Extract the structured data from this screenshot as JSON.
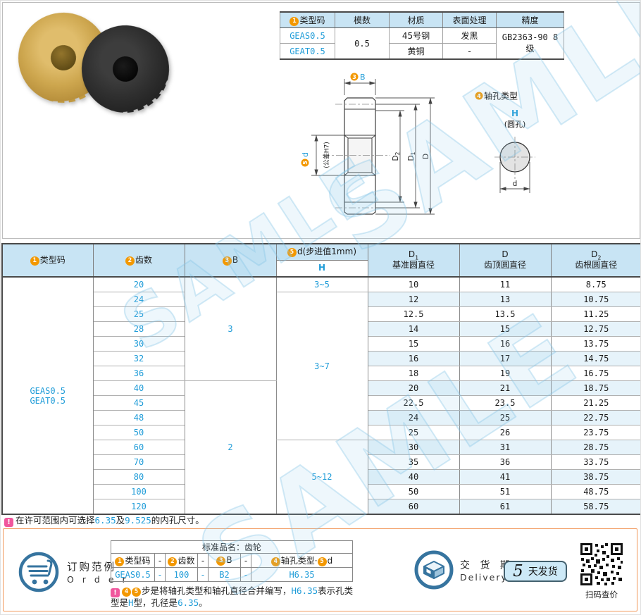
{
  "watermark": {
    "text": "SAMLE"
  },
  "spec_table": {
    "badge": "1",
    "headers": {
      "type": "类型码",
      "module": "模数",
      "material": "材质",
      "surface": "表面处理",
      "precision": "精度"
    },
    "type1": "GEAS0.5",
    "type2": "GEAT0.5",
    "module": "0.5",
    "material1": "45号钢",
    "material2": "黄铜",
    "surface1": "发黑",
    "surface2": "-",
    "precision": "GB2363-90 8级"
  },
  "drawing": {
    "b_badge": "3",
    "b_label": "B",
    "d_badge": "5",
    "d_label": "d",
    "d_tol": "(公差H7)",
    "dim_d2_main": "D",
    "dim_d2_sub": "2",
    "dim_d1_main": "D",
    "dim_d1_sub": "1",
    "dim_d": "D",
    "hole_badge": "4",
    "hole_title": "轴孔类型",
    "hole_type": "H",
    "hole_note": "(圆孔)",
    "hole_dim": "d"
  },
  "main_table": {
    "headers": {
      "type": {
        "badge": "1",
        "label": "类型码"
      },
      "teeth": {
        "badge": "2",
        "label": "齿数"
      },
      "b": {
        "badge": "3",
        "label": "B"
      },
      "d": {
        "badge": "5",
        "label": "d(步进值1mm)",
        "sub": "H"
      },
      "d1": {
        "main": "D",
        "sub": "1",
        "label": "基准圆直径"
      },
      "dd": {
        "main": "D",
        "sub": "",
        "label": "齿顶圆直径"
      },
      "d2": {
        "main": "D",
        "sub": "2",
        "label": "齿根圆直径"
      }
    },
    "type_codes": [
      "GEAS0.5",
      "GEAT0.5"
    ],
    "b_groups": [
      {
        "value": "3",
        "start": 0,
        "span": 7
      },
      {
        "value": "2",
        "start": 7,
        "span": 9
      }
    ],
    "d_groups": [
      {
        "value": "3~5",
        "start": 0,
        "span": 1
      },
      {
        "value": "3~7",
        "start": 1,
        "span": 10
      },
      {
        "value": "5~12",
        "start": 11,
        "span": 5
      }
    ],
    "rows": [
      {
        "teeth": "20",
        "d1": "10",
        "d": "11",
        "d2": "8.75"
      },
      {
        "teeth": "24",
        "d1": "12",
        "d": "13",
        "d2": "10.75"
      },
      {
        "teeth": "25",
        "d1": "12.5",
        "d": "13.5",
        "d2": "11.25"
      },
      {
        "teeth": "28",
        "d1": "14",
        "d": "15",
        "d2": "12.75"
      },
      {
        "teeth": "30",
        "d1": "15",
        "d": "16",
        "d2": "13.75"
      },
      {
        "teeth": "32",
        "d1": "16",
        "d": "17",
        "d2": "14.75"
      },
      {
        "teeth": "36",
        "d1": "18",
        "d": "19",
        "d2": "16.75"
      },
      {
        "teeth": "40",
        "d1": "20",
        "d": "21",
        "d2": "18.75"
      },
      {
        "teeth": "45",
        "d1": "22.5",
        "d": "23.5",
        "d2": "21.25"
      },
      {
        "teeth": "48",
        "d1": "24",
        "d": "25",
        "d2": "22.75"
      },
      {
        "teeth": "50",
        "d1": "25",
        "d": "26",
        "d2": "23.75"
      },
      {
        "teeth": "60",
        "d1": "30",
        "d": "31",
        "d2": "28.75"
      },
      {
        "teeth": "70",
        "d1": "35",
        "d": "36",
        "d2": "33.75"
      },
      {
        "teeth": "80",
        "d1": "40",
        "d": "41",
        "d2": "38.75"
      },
      {
        "teeth": "100",
        "d1": "50",
        "d": "51",
        "d2": "48.75"
      },
      {
        "teeth": "120",
        "d1": "60",
        "d": "61",
        "d2": "58.75"
      }
    ]
  },
  "note1": {
    "p1": "在许可范围内可选择",
    "v1": "6.35",
    "p2": "及",
    "v2": "9.525",
    "p3": "的内孔尺寸。"
  },
  "order": {
    "title": "订购范例",
    "subtitle": "O r d e r",
    "table": {
      "caption": "标准品名：齿轮",
      "h1": {
        "badge": "1",
        "label": "类型码"
      },
      "h2": {
        "badge": "2",
        "label": "齿数"
      },
      "h3": {
        "badge": "3",
        "label": "B"
      },
      "h4": {
        "badge1": "4",
        "label1": "轴孔类型",
        "sep": "·",
        "badge2": "5",
        "label2": "d"
      },
      "dash": "-",
      "v1": "GEAS0.5",
      "v2": "100",
      "v3": "B2",
      "v4": "H6.35"
    },
    "note": {
      "badge1": "4",
      "badge2": "5",
      "p1": "步是将轴孔类型和轴孔直径合并编写，",
      "v1": "H6.35",
      "p2": "表示孔类型是",
      "v2": "H",
      "p3": "型，孔径是",
      "v3": "6.35",
      "p4": "。"
    }
  },
  "delivery": {
    "title": "交 货 期",
    "subtitle": "Delivery",
    "days": "5",
    "unit": "天发货",
    "qr_label": "扫码查价"
  }
}
